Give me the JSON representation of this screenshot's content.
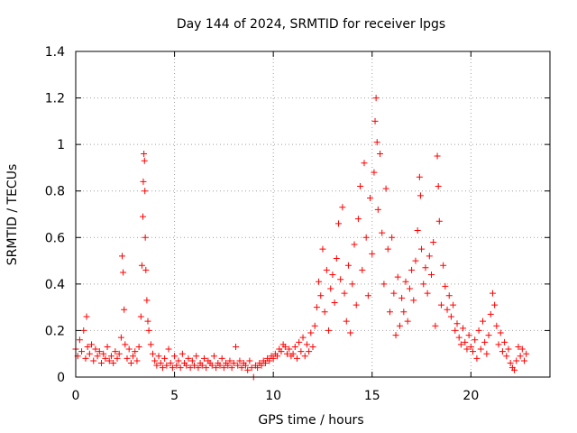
{
  "chart_data": {
    "type": "scatter",
    "title": "Day 144 of 2024, SRMTID for receiver lpgs",
    "xlabel": "GPS time / hours",
    "ylabel": "SRMTID / TECUs",
    "xlim": [
      0,
      24
    ],
    "ylim": [
      0,
      1.4
    ],
    "xticks": [
      0,
      5,
      10,
      15,
      20
    ],
    "xtick_labels": [
      "0",
      "5",
      "10",
      "15",
      "20"
    ],
    "yticks": [
      0,
      0.2,
      0.4,
      0.6,
      0.8,
      1.0,
      1.2,
      1.4
    ],
    "ytick_labels": [
      "0",
      "0.2",
      "0.4",
      "0.6",
      "0.8",
      "1",
      "1.2",
      "1.4"
    ],
    "grid": true,
    "marker": "+",
    "color": "#ff0000",
    "series": [
      {
        "name": "SRMTID",
        "points": [
          [
            0.0,
            0.12
          ],
          [
            0.1,
            0.09
          ],
          [
            0.2,
            0.16
          ],
          [
            0.3,
            0.11
          ],
          [
            0.4,
            0.2
          ],
          [
            0.5,
            0.08
          ],
          [
            0.55,
            0.26
          ],
          [
            0.6,
            0.13
          ],
          [
            0.7,
            0.1
          ],
          [
            0.8,
            0.14
          ],
          [
            0.9,
            0.07
          ],
          [
            1.0,
            0.12
          ],
          [
            1.1,
            0.09
          ],
          [
            1.2,
            0.11
          ],
          [
            1.3,
            0.06
          ],
          [
            1.4,
            0.1
          ],
          [
            1.5,
            0.08
          ],
          [
            1.6,
            0.13
          ],
          [
            1.7,
            0.07
          ],
          [
            1.8,
            0.09
          ],
          [
            1.9,
            0.06
          ],
          [
            2.0,
            0.11
          ],
          [
            2.1,
            0.08
          ],
          [
            2.2,
            0.1
          ],
          [
            2.3,
            0.17
          ],
          [
            2.35,
            0.52
          ],
          [
            2.4,
            0.45
          ],
          [
            2.45,
            0.29
          ],
          [
            2.5,
            0.14
          ],
          [
            2.6,
            0.08
          ],
          [
            2.7,
            0.12
          ],
          [
            2.8,
            0.06
          ],
          [
            2.9,
            0.09
          ],
          [
            3.0,
            0.11
          ],
          [
            3.1,
            0.07
          ],
          [
            3.2,
            0.13
          ],
          [
            3.3,
            0.26
          ],
          [
            3.35,
            0.48
          ],
          [
            3.4,
            0.69
          ],
          [
            3.42,
            0.84
          ],
          [
            3.45,
            0.96
          ],
          [
            3.48,
            0.93
          ],
          [
            3.5,
            0.8
          ],
          [
            3.52,
            0.6
          ],
          [
            3.55,
            0.46
          ],
          [
            3.6,
            0.33
          ],
          [
            3.65,
            0.24
          ],
          [
            3.7,
            0.2
          ],
          [
            3.8,
            0.14
          ],
          [
            3.9,
            0.1
          ],
          [
            4.0,
            0.07
          ],
          [
            4.1,
            0.05
          ],
          [
            4.2,
            0.09
          ],
          [
            4.3,
            0.06
          ],
          [
            4.4,
            0.04
          ],
          [
            4.5,
            0.08
          ],
          [
            4.6,
            0.05
          ],
          [
            4.7,
            0.12
          ],
          [
            4.8,
            0.06
          ],
          [
            4.9,
            0.04
          ],
          [
            5.0,
            0.09
          ],
          [
            5.1,
            0.05
          ],
          [
            5.2,
            0.07
          ],
          [
            5.3,
            0.04
          ],
          [
            5.4,
            0.1
          ],
          [
            5.5,
            0.06
          ],
          [
            5.6,
            0.05
          ],
          [
            5.7,
            0.08
          ],
          [
            5.8,
            0.04
          ],
          [
            5.9,
            0.07
          ],
          [
            6.0,
            0.05
          ],
          [
            6.1,
            0.09
          ],
          [
            6.2,
            0.04
          ],
          [
            6.3,
            0.06
          ],
          [
            6.4,
            0.05
          ],
          [
            6.5,
            0.08
          ],
          [
            6.6,
            0.04
          ],
          [
            6.7,
            0.07
          ],
          [
            6.8,
            0.06
          ],
          [
            6.9,
            0.05
          ],
          [
            7.0,
            0.09
          ],
          [
            7.1,
            0.04
          ],
          [
            7.2,
            0.06
          ],
          [
            7.3,
            0.05
          ],
          [
            7.4,
            0.08
          ],
          [
            7.5,
            0.04
          ],
          [
            7.6,
            0.06
          ],
          [
            7.7,
            0.05
          ],
          [
            7.8,
            0.07
          ],
          [
            7.9,
            0.04
          ],
          [
            8.0,
            0.06
          ],
          [
            8.1,
            0.13
          ],
          [
            8.2,
            0.05
          ],
          [
            8.3,
            0.07
          ],
          [
            8.4,
            0.04
          ],
          [
            8.5,
            0.06
          ],
          [
            8.6,
            0.05
          ],
          [
            8.7,
            0.03
          ],
          [
            8.8,
            0.07
          ],
          [
            8.9,
            0.04
          ],
          [
            9.0,
            0.0
          ],
          [
            9.1,
            0.05
          ],
          [
            9.2,
            0.04
          ],
          [
            9.3,
            0.06
          ],
          [
            9.4,
            0.05
          ],
          [
            9.5,
            0.07
          ],
          [
            9.6,
            0.06
          ],
          [
            9.7,
            0.08
          ],
          [
            9.8,
            0.07
          ],
          [
            9.9,
            0.09
          ],
          [
            10.0,
            0.08
          ],
          [
            10.1,
            0.1
          ],
          [
            10.2,
            0.09
          ],
          [
            10.3,
            0.12
          ],
          [
            10.4,
            0.11
          ],
          [
            10.5,
            0.14
          ],
          [
            10.6,
            0.13
          ],
          [
            10.7,
            0.1
          ],
          [
            10.8,
            0.12
          ],
          [
            10.9,
            0.09
          ],
          [
            11.0,
            0.1
          ],
          [
            11.1,
            0.13
          ],
          [
            11.2,
            0.08
          ],
          [
            11.3,
            0.15
          ],
          [
            11.4,
            0.11
          ],
          [
            11.5,
            0.17
          ],
          [
            11.6,
            0.09
          ],
          [
            11.7,
            0.14
          ],
          [
            11.8,
            0.11
          ],
          [
            11.9,
            0.19
          ],
          [
            12.0,
            0.13
          ],
          [
            12.1,
            0.22
          ],
          [
            12.2,
            0.3
          ],
          [
            12.3,
            0.41
          ],
          [
            12.4,
            0.35
          ],
          [
            12.5,
            0.55
          ],
          [
            12.6,
            0.28
          ],
          [
            12.7,
            0.46
          ],
          [
            12.8,
            0.2
          ],
          [
            12.9,
            0.38
          ],
          [
            13.0,
            0.44
          ],
          [
            13.1,
            0.32
          ],
          [
            13.2,
            0.51
          ],
          [
            13.3,
            0.66
          ],
          [
            13.4,
            0.42
          ],
          [
            13.5,
            0.73
          ],
          [
            13.6,
            0.36
          ],
          [
            13.7,
            0.24
          ],
          [
            13.8,
            0.48
          ],
          [
            13.9,
            0.19
          ],
          [
            14.0,
            0.4
          ],
          [
            14.1,
            0.57
          ],
          [
            14.2,
            0.31
          ],
          [
            14.3,
            0.68
          ],
          [
            14.4,
            0.82
          ],
          [
            14.5,
            0.46
          ],
          [
            14.6,
            0.92
          ],
          [
            14.7,
            0.6
          ],
          [
            14.8,
            0.35
          ],
          [
            14.9,
            0.77
          ],
          [
            15.0,
            0.53
          ],
          [
            15.1,
            0.88
          ],
          [
            15.15,
            1.1
          ],
          [
            15.2,
            1.2
          ],
          [
            15.25,
            1.01
          ],
          [
            15.3,
            0.72
          ],
          [
            15.4,
            0.96
          ],
          [
            15.5,
            0.62
          ],
          [
            15.6,
            0.4
          ],
          [
            15.7,
            0.81
          ],
          [
            15.8,
            0.55
          ],
          [
            15.9,
            0.28
          ],
          [
            16.0,
            0.6
          ],
          [
            16.1,
            0.36
          ],
          [
            16.2,
            0.18
          ],
          [
            16.3,
            0.43
          ],
          [
            16.4,
            0.22
          ],
          [
            16.5,
            0.34
          ],
          [
            16.6,
            0.28
          ],
          [
            16.7,
            0.41
          ],
          [
            16.8,
            0.24
          ],
          [
            16.9,
            0.38
          ],
          [
            17.0,
            0.46
          ],
          [
            17.1,
            0.33
          ],
          [
            17.2,
            0.5
          ],
          [
            17.3,
            0.63
          ],
          [
            17.4,
            0.86
          ],
          [
            17.45,
            0.78
          ],
          [
            17.5,
            0.55
          ],
          [
            17.6,
            0.4
          ],
          [
            17.7,
            0.47
          ],
          [
            17.8,
            0.36
          ],
          [
            17.9,
            0.52
          ],
          [
            18.0,
            0.44
          ],
          [
            18.1,
            0.58
          ],
          [
            18.2,
            0.22
          ],
          [
            18.3,
            0.95
          ],
          [
            18.35,
            0.82
          ],
          [
            18.4,
            0.67
          ],
          [
            18.5,
            0.31
          ],
          [
            18.6,
            0.48
          ],
          [
            18.7,
            0.39
          ],
          [
            18.8,
            0.29
          ],
          [
            18.9,
            0.35
          ],
          [
            19.0,
            0.26
          ],
          [
            19.1,
            0.31
          ],
          [
            19.2,
            0.2
          ],
          [
            19.3,
            0.23
          ],
          [
            19.4,
            0.17
          ],
          [
            19.5,
            0.14
          ],
          [
            19.6,
            0.21
          ],
          [
            19.7,
            0.15
          ],
          [
            19.8,
            0.12
          ],
          [
            19.9,
            0.18
          ],
          [
            20.0,
            0.13
          ],
          [
            20.1,
            0.11
          ],
          [
            20.2,
            0.16
          ],
          [
            20.3,
            0.08
          ],
          [
            20.4,
            0.2
          ],
          [
            20.5,
            0.12
          ],
          [
            20.6,
            0.24
          ],
          [
            20.7,
            0.15
          ],
          [
            20.8,
            0.1
          ],
          [
            20.9,
            0.18
          ],
          [
            21.0,
            0.27
          ],
          [
            21.1,
            0.36
          ],
          [
            21.2,
            0.31
          ],
          [
            21.3,
            0.22
          ],
          [
            21.4,
            0.14
          ],
          [
            21.5,
            0.19
          ],
          [
            21.6,
            0.11
          ],
          [
            21.7,
            0.15
          ],
          [
            21.8,
            0.09
          ],
          [
            21.9,
            0.12
          ],
          [
            22.0,
            0.06
          ],
          [
            22.1,
            0.04
          ],
          [
            22.2,
            0.03
          ],
          [
            22.3,
            0.07
          ],
          [
            22.4,
            0.13
          ],
          [
            22.5,
            0.09
          ],
          [
            22.6,
            0.12
          ],
          [
            22.7,
            0.07
          ],
          [
            22.8,
            0.1
          ]
        ]
      }
    ]
  }
}
